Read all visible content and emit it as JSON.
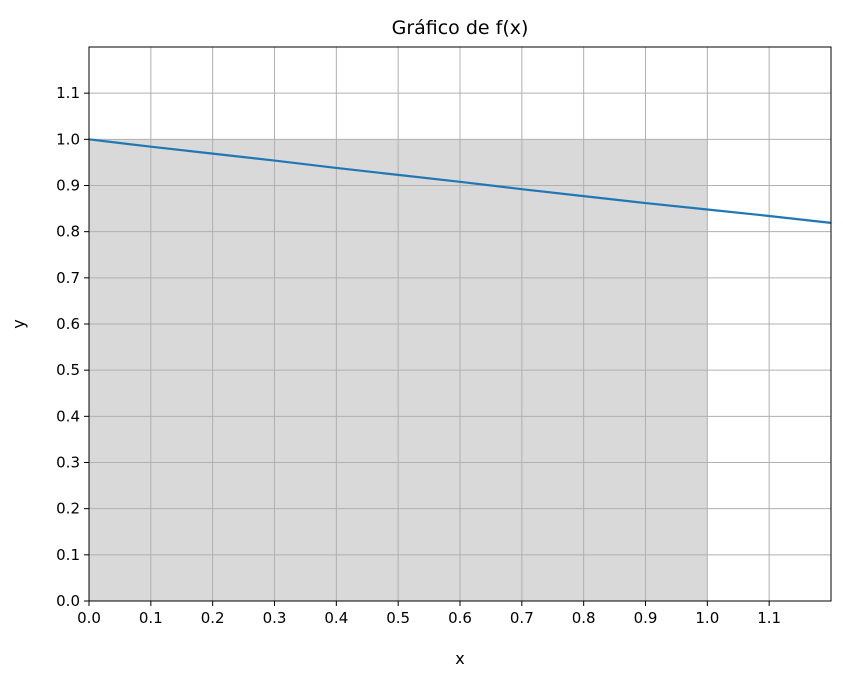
{
  "chart_data": {
    "type": "line",
    "title": "Gráfico de f(x)",
    "xlabel": "x",
    "ylabel": "y",
    "xlim": [
      0.0,
      1.2
    ],
    "ylim": [
      0.0,
      1.2
    ],
    "grid": true,
    "x_ticks": [
      "0.0",
      "0.1",
      "0.2",
      "0.3",
      "0.4",
      "0.5",
      "0.6",
      "0.7",
      "0.8",
      "0.9",
      "1.0",
      "1.1"
    ],
    "y_ticks": [
      "0.0",
      "0.1",
      "0.2",
      "0.3",
      "0.4",
      "0.5",
      "0.6",
      "0.7",
      "0.8",
      "0.9",
      "1.0",
      "1.1"
    ],
    "series": [
      {
        "x": [
          0.0,
          0.1,
          0.2,
          0.3,
          0.4,
          0.5,
          0.6,
          0.7,
          0.8,
          0.9,
          1.0,
          1.1,
          1.2
        ],
        "values": [
          1.0,
          0.984,
          0.969,
          0.954,
          0.938,
          0.923,
          0.908,
          0.892,
          0.877,
          0.862,
          0.848,
          0.834,
          0.819
        ],
        "color": "#1f77b4"
      }
    ],
    "shaded_region": {
      "x": [
        0.0,
        1.0
      ],
      "y": [
        0.0,
        1.0
      ],
      "color": "#d9d9d9"
    }
  }
}
